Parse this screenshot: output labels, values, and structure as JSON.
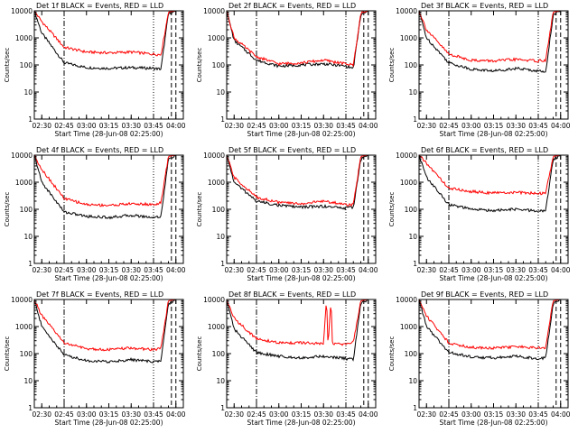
{
  "start_label": "Start Time (28-Jun-08 02:25:00)",
  "ylabel": "Counts/sec",
  "x_tick_labels": [
    "02:30",
    "02:45",
    "03:00",
    "03:15",
    "03:30",
    "03:45",
    "04:00"
  ],
  "y_tick_labels": [
    "1",
    "10",
    "100",
    "1000",
    "10000"
  ],
  "colors": {
    "events": "#000000",
    "lld": "#ff0000",
    "axes": "#000000"
  },
  "chart_data": [
    {
      "type": "line",
      "title": "Det 1f BLACK = Events, RED = LLD",
      "x_unit": "HH:MM",
      "xlim": [
        "02:25",
        "04:05"
      ],
      "ylim": [
        1,
        10000
      ],
      "yscale": "log",
      "markers": {
        "dash_dot": "02:45",
        "dotted": "03:45",
        "dashed": [
          "03:57",
          "04:00"
        ]
      },
      "series": [
        {
          "name": "BLACK = Events",
          "x": [
            "02:25",
            "02:30",
            "02:45",
            "03:00",
            "03:15",
            "03:30",
            "03:45",
            "03:50",
            "03:55",
            "04:00",
            "04:05"
          ],
          "values": [
            10000,
            1500,
            120,
            80,
            75,
            80,
            75,
            70,
            8000,
            10000,
            10000
          ]
        },
        {
          "name": "RED = LLD",
          "x": [
            "02:25",
            "02:30",
            "02:45",
            "03:00",
            "03:15",
            "03:30",
            "03:45",
            "03:50",
            "03:55",
            "04:00",
            "04:05"
          ],
          "values": [
            10000,
            4000,
            450,
            300,
            280,
            300,
            250,
            240,
            9000,
            10000,
            10000
          ]
        }
      ]
    },
    {
      "type": "line",
      "title": "Det 2f BLACK = Events, RED = LLD",
      "x_unit": "HH:MM",
      "xlim": [
        "02:25",
        "04:05"
      ],
      "ylim": [
        1,
        10000
      ],
      "yscale": "log",
      "markers": {
        "dash_dot": "02:45",
        "dotted": "03:45",
        "dashed": [
          "03:57",
          "04:00"
        ]
      },
      "series": [
        {
          "name": "BLACK = Events",
          "x": [
            "02:25",
            "02:30",
            "02:45",
            "03:00",
            "03:15",
            "03:30",
            "03:45",
            "03:50",
            "03:55",
            "04:00",
            "04:05"
          ],
          "values": [
            10000,
            800,
            150,
            90,
            100,
            110,
            90,
            75,
            7000,
            10000,
            10000
          ]
        },
        {
          "name": "RED = LLD",
          "x": [
            "02:25",
            "02:30",
            "02:45",
            "03:00",
            "03:15",
            "03:30",
            "03:45",
            "03:50",
            "03:55",
            "04:00",
            "04:05"
          ],
          "values": [
            10000,
            1000,
            200,
            110,
            120,
            150,
            110,
            100,
            8000,
            10000,
            10000
          ]
        }
      ]
    },
    {
      "type": "line",
      "title": "Det 3f BLACK = Events, RED = LLD",
      "x_unit": "HH:MM",
      "xlim": [
        "02:25",
        "04:05"
      ],
      "ylim": [
        1,
        10000
      ],
      "yscale": "log",
      "markers": {
        "dash_dot": "02:45",
        "dotted": "03:45",
        "dashed": [
          "03:57",
          "04:00"
        ]
      },
      "series": [
        {
          "name": "BLACK = Events",
          "x": [
            "02:25",
            "02:30",
            "02:45",
            "03:00",
            "03:15",
            "03:30",
            "03:45",
            "03:50",
            "03:55",
            "04:00",
            "04:05"
          ],
          "values": [
            10000,
            1000,
            120,
            70,
            60,
            75,
            60,
            55,
            7000,
            10000,
            10000
          ]
        },
        {
          "name": "RED = LLD",
          "x": [
            "02:25",
            "02:30",
            "02:45",
            "03:00",
            "03:15",
            "03:30",
            "03:45",
            "03:50",
            "03:55",
            "04:00",
            "04:05"
          ],
          "values": [
            10000,
            2000,
            250,
            150,
            140,
            160,
            140,
            150,
            9000,
            10000,
            10000
          ]
        }
      ]
    },
    {
      "type": "line",
      "title": "Det 4f BLACK = Events, RED = LLD",
      "x_unit": "HH:MM",
      "xlim": [
        "02:25",
        "04:05"
      ],
      "ylim": [
        1,
        10000
      ],
      "yscale": "log",
      "markers": {
        "dash_dot": "02:45",
        "dotted": "03:45",
        "dashed": [
          "03:57",
          "04:00"
        ]
      },
      "series": [
        {
          "name": "BLACK = Events",
          "x": [
            "02:25",
            "02:30",
            "02:45",
            "03:00",
            "03:15",
            "03:30",
            "03:45",
            "03:50",
            "03:55",
            "04:00",
            "04:05"
          ],
          "values": [
            10000,
            1000,
            80,
            55,
            50,
            60,
            50,
            55,
            7000,
            10000,
            10000
          ]
        },
        {
          "name": "RED = LLD",
          "x": [
            "02:25",
            "02:30",
            "02:45",
            "03:00",
            "03:15",
            "03:30",
            "03:45",
            "03:50",
            "03:55",
            "04:00",
            "04:05"
          ],
          "values": [
            10000,
            3000,
            250,
            150,
            140,
            160,
            150,
            170,
            9000,
            10000,
            10000
          ]
        }
      ]
    },
    {
      "type": "line",
      "title": "Det 5f BLACK = Events, RED = LLD",
      "x_unit": "HH:MM",
      "xlim": [
        "02:25",
        "04:05"
      ],
      "ylim": [
        1,
        10000
      ],
      "yscale": "log",
      "markers": {
        "dash_dot": "02:45",
        "dotted": "03:45",
        "dashed": [
          "03:57",
          "04:00"
        ]
      },
      "series": [
        {
          "name": "BLACK = Events",
          "x": [
            "02:25",
            "02:30",
            "02:45",
            "03:00",
            "03:15",
            "03:30",
            "03:45",
            "03:50",
            "03:55",
            "04:00",
            "04:05"
          ],
          "values": [
            10000,
            1000,
            200,
            140,
            120,
            130,
            110,
            120,
            7000,
            10000,
            10000
          ]
        },
        {
          "name": "RED = LLD",
          "x": [
            "02:25",
            "02:30",
            "02:45",
            "03:00",
            "03:15",
            "03:30",
            "03:45",
            "03:50",
            "03:55",
            "04:00",
            "04:05"
          ],
          "values": [
            10000,
            1500,
            280,
            180,
            160,
            200,
            150,
            150,
            9000,
            10000,
            10000
          ]
        }
      ]
    },
    {
      "type": "line",
      "title": "Det 6f BLACK = Events, RED = LLD",
      "x_unit": "HH:MM",
      "xlim": [
        "02:25",
        "04:05"
      ],
      "ylim": [
        1,
        10000
      ],
      "yscale": "log",
      "markers": {
        "dash_dot": "02:45",
        "dotted": "03:45",
        "dashed": [
          "03:57",
          "04:00"
        ]
      },
      "series": [
        {
          "name": "BLACK = Events",
          "x": [
            "02:25",
            "02:30",
            "02:45",
            "03:00",
            "03:15",
            "03:30",
            "03:45",
            "03:50",
            "03:55",
            "04:00",
            "04:05"
          ],
          "values": [
            10000,
            1500,
            150,
            100,
            90,
            100,
            85,
            90,
            7000,
            10000,
            10000
          ]
        },
        {
          "name": "RED = LLD",
          "x": [
            "02:25",
            "02:30",
            "02:45",
            "03:00",
            "03:15",
            "03:30",
            "03:45",
            "03:50",
            "03:55",
            "04:00",
            "04:05"
          ],
          "values": [
            10000,
            5000,
            600,
            450,
            400,
            420,
            380,
            400,
            9000,
            10000,
            10000
          ]
        }
      ]
    },
    {
      "type": "line",
      "title": "Det 7f BLACK = Events, RED = LLD",
      "x_unit": "HH:MM",
      "xlim": [
        "02:25",
        "04:05"
      ],
      "ylim": [
        1,
        10000
      ],
      "yscale": "log",
      "markers": {
        "dash_dot": "02:45",
        "dotted": "03:45",
        "dashed": [
          "03:57",
          "04:00"
        ]
      },
      "series": [
        {
          "name": "BLACK = Events",
          "x": [
            "02:25",
            "02:30",
            "02:45",
            "03:00",
            "03:15",
            "03:30",
            "03:45",
            "03:50",
            "03:55",
            "04:00",
            "04:05"
          ],
          "values": [
            10000,
            1000,
            90,
            55,
            50,
            60,
            50,
            55,
            7000,
            10000,
            10000
          ]
        },
        {
          "name": "RED = LLD",
          "x": [
            "02:25",
            "02:30",
            "02:45",
            "03:00",
            "03:15",
            "03:30",
            "03:45",
            "03:50",
            "03:55",
            "04:00",
            "04:05"
          ],
          "values": [
            10000,
            2500,
            250,
            150,
            140,
            160,
            140,
            160,
            9000,
            10000,
            10000
          ]
        }
      ]
    },
    {
      "type": "line",
      "title": "Det 8f BLACK = Events, RED = LLD",
      "x_unit": "HH:MM",
      "xlim": [
        "02:25",
        "04:05"
      ],
      "ylim": [
        1,
        10000
      ],
      "yscale": "log",
      "markers": {
        "dash_dot": "02:45",
        "dotted": "03:45",
        "dashed": [
          "03:57",
          "04:00"
        ]
      },
      "series": [
        {
          "name": "BLACK = Events",
          "x": [
            "02:25",
            "02:30",
            "02:45",
            "03:00",
            "03:15",
            "03:30",
            "03:45",
            "03:50",
            "03:55",
            "04:00",
            "04:05"
          ],
          "values": [
            10000,
            800,
            110,
            80,
            70,
            80,
            65,
            60,
            7000,
            10000,
            10000
          ]
        },
        {
          "name": "RED = LLD",
          "x": [
            "02:25",
            "02:30",
            "02:45",
            "03:00",
            "03:15",
            "03:30",
            "03:32",
            "03:33",
            "03:35",
            "03:36",
            "03:45",
            "03:50",
            "03:55",
            "04:00",
            "04:05"
          ],
          "values": [
            10000,
            2000,
            350,
            250,
            250,
            230,
            10000,
            200,
            10000,
            220,
            230,
            260,
            9000,
            10000,
            10000
          ]
        }
      ]
    },
    {
      "type": "line",
      "title": "Det 9f BLACK = Events, RED = LLD",
      "x_unit": "HH:MM",
      "xlim": [
        "02:25",
        "04:05"
      ],
      "ylim": [
        1,
        10000
      ],
      "yscale": "log",
      "markers": {
        "dash_dot": "02:45",
        "dotted": "03:45",
        "dashed": [
          "03:57",
          "04:00"
        ]
      },
      "series": [
        {
          "name": "BLACK = Events",
          "x": [
            "02:25",
            "02:30",
            "02:45",
            "03:00",
            "03:15",
            "03:30",
            "03:45",
            "03:50",
            "03:55",
            "04:00",
            "04:05"
          ],
          "values": [
            10000,
            1000,
            110,
            75,
            70,
            80,
            65,
            70,
            7000,
            10000,
            10000
          ]
        },
        {
          "name": "RED = LLD",
          "x": [
            "02:25",
            "02:30",
            "02:45",
            "03:00",
            "03:15",
            "03:30",
            "03:45",
            "03:50",
            "03:55",
            "04:00",
            "04:05"
          ],
          "values": [
            10000,
            2500,
            250,
            170,
            160,
            180,
            160,
            170,
            9000,
            10000,
            10000
          ]
        }
      ]
    }
  ]
}
